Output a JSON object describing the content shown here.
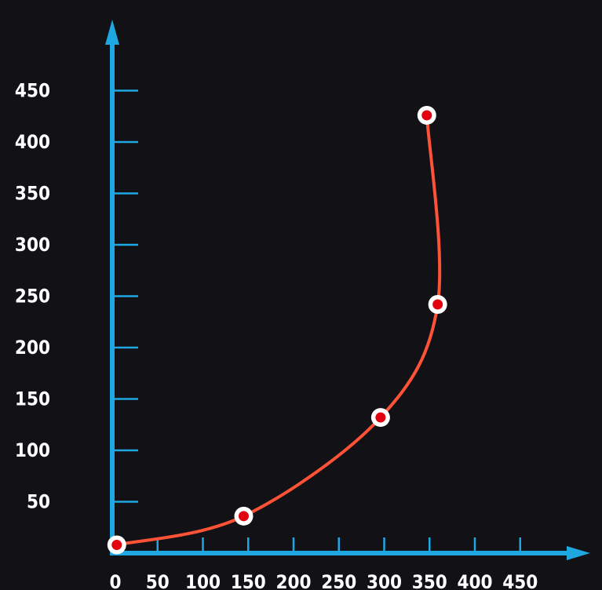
{
  "chart_data": {
    "type": "scatter",
    "title": "",
    "xlabel": "",
    "ylabel": "",
    "x_ticks": [
      0,
      50,
      100,
      150,
      200,
      250,
      300,
      350,
      400,
      450
    ],
    "y_ticks": [
      50,
      100,
      150,
      200,
      250,
      300,
      350,
      400,
      450
    ],
    "xlim": [
      0,
      480
    ],
    "ylim": [
      0,
      480
    ],
    "grid": false,
    "points": [
      {
        "x": 5,
        "y": 8
      },
      {
        "x": 145,
        "y": 36
      },
      {
        "x": 296,
        "y": 132
      },
      {
        "x": 359,
        "y": 242
      },
      {
        "x": 347,
        "y": 426
      }
    ],
    "colors": {
      "background": "#111116",
      "axis": "#1ea7e1",
      "curve": "#ff5236",
      "marker_fill": "#e3000f",
      "marker_ring": "#ffffff",
      "label": "#ffffff"
    }
  }
}
